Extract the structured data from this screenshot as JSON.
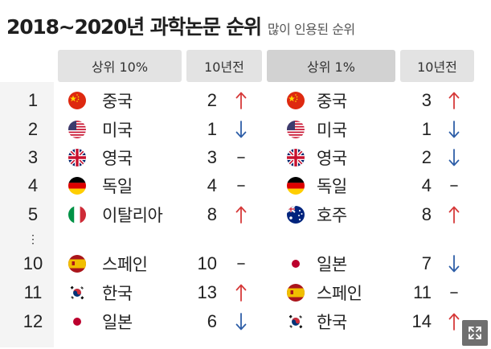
{
  "header": {
    "title": "2018~2020년 과학논문 순위",
    "subtitle": "많이 인용된 순위"
  },
  "columns": {
    "top10_label": "상위 10%",
    "top10_prev_label": "10년전",
    "top1_label": "상위 1%",
    "top1_prev_label": "10년전"
  },
  "chart_data": {
    "type": "table",
    "title": "2018~2020년 과학논문 순위",
    "subtitle": "많이 인용된 순위",
    "columns": [
      "",
      "상위 10%",
      "10년전",
      "상위 1%",
      "10년전"
    ],
    "rows": [
      {
        "rank": "1",
        "top10": {
          "country": "중국",
          "flag": "china",
          "prev": "2",
          "trend": "up"
        },
        "top1": {
          "country": "중국",
          "flag": "china",
          "prev": "3",
          "trend": "up"
        }
      },
      {
        "rank": "2",
        "top10": {
          "country": "미국",
          "flag": "usa",
          "prev": "1",
          "trend": "down"
        },
        "top1": {
          "country": "미국",
          "flag": "usa",
          "prev": "1",
          "trend": "down"
        }
      },
      {
        "rank": "3",
        "top10": {
          "country": "영국",
          "flag": "uk",
          "prev": "3",
          "trend": "same"
        },
        "top1": {
          "country": "영국",
          "flag": "uk",
          "prev": "2",
          "trend": "down"
        }
      },
      {
        "rank": "4",
        "top10": {
          "country": "독일",
          "flag": "germany",
          "prev": "4",
          "trend": "same"
        },
        "top1": {
          "country": "독일",
          "flag": "germany",
          "prev": "4",
          "trend": "same"
        }
      },
      {
        "rank": "5",
        "top10": {
          "country": "이탈리아",
          "flag": "italy",
          "prev": "8",
          "trend": "up"
        },
        "top1": {
          "country": "호주",
          "flag": "australia",
          "prev": "8",
          "trend": "up"
        }
      },
      {
        "rank": "10",
        "top10": {
          "country": "스페인",
          "flag": "spain",
          "prev": "10",
          "trend": "same"
        },
        "top1": {
          "country": "일본",
          "flag": "japan",
          "prev": "7",
          "trend": "down"
        }
      },
      {
        "rank": "11",
        "top10": {
          "country": "한국",
          "flag": "korea",
          "prev": "13",
          "trend": "up"
        },
        "top1": {
          "country": "스페인",
          "flag": "spain",
          "prev": "11",
          "trend": "same"
        }
      },
      {
        "rank": "12",
        "top10": {
          "country": "일본",
          "flag": "japan",
          "prev": "6",
          "trend": "down"
        },
        "top1": {
          "country": "한국",
          "flag": "korea",
          "prev": "14",
          "trend": "up"
        }
      }
    ],
    "ellipsis": "⋮"
  },
  "colors": {
    "up": "#d63a3a",
    "down": "#2f5fa8",
    "same": "#222222",
    "header_light": "#e3e3e3",
    "header_dark": "#d2d2d2",
    "rank_bg": "#f4f4f4"
  },
  "controls": {
    "expand_icon": "expand-icon"
  }
}
